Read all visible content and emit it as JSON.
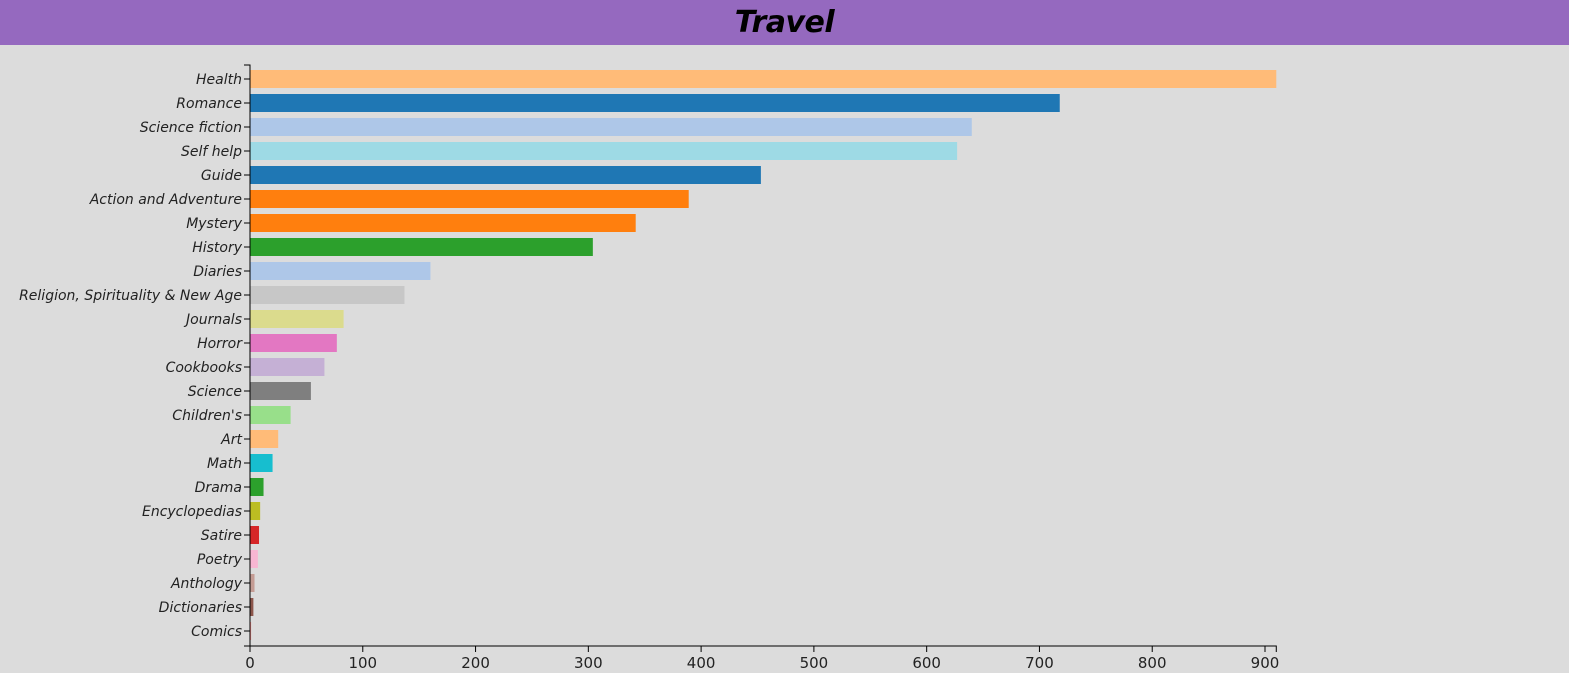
{
  "header": {
    "title": "Travel"
  },
  "chart_data": {
    "type": "bar",
    "orientation": "horizontal",
    "title": "Travel",
    "xlabel": "",
    "ylabel": "",
    "xlim": [
      0,
      910
    ],
    "xticks": [
      0,
      100,
      200,
      300,
      400,
      500,
      600,
      700,
      800,
      900
    ],
    "grid": false,
    "categories": [
      "Health",
      "Romance",
      "Science fiction",
      "Self help",
      "Guide",
      "Action and Adventure",
      "Mystery",
      "History",
      "Diaries",
      "Religion, Spirituality & New Age",
      "Journals",
      "Horror",
      "Cookbooks",
      "Science",
      "Children's",
      "Art",
      "Math",
      "Drama",
      "Encyclopedias",
      "Satire",
      "Poetry",
      "Anthology",
      "Dictionaries",
      "Comics"
    ],
    "values": [
      910,
      718,
      640,
      627,
      453,
      389,
      342,
      304,
      160,
      137,
      83,
      77,
      66,
      54,
      36,
      25,
      20,
      12,
      9,
      8,
      7,
      4,
      3,
      1
    ],
    "colors": [
      "#ffbb78",
      "#1f77b4",
      "#aec7e8",
      "#9edae5",
      "#1f77b4",
      "#ff7f0e",
      "#ff7f0e",
      "#2ca02c",
      "#aec7e8",
      "#c7c7c7",
      "#dbdb8d",
      "#e377c2",
      "#c5b0d5",
      "#7f7f7f",
      "#98df8a",
      "#ffbb78",
      "#17becf",
      "#2ca02c",
      "#bcbd22",
      "#d62728",
      "#f7b6d2",
      "#c49c94",
      "#8c564b",
      "#ff9896"
    ]
  }
}
